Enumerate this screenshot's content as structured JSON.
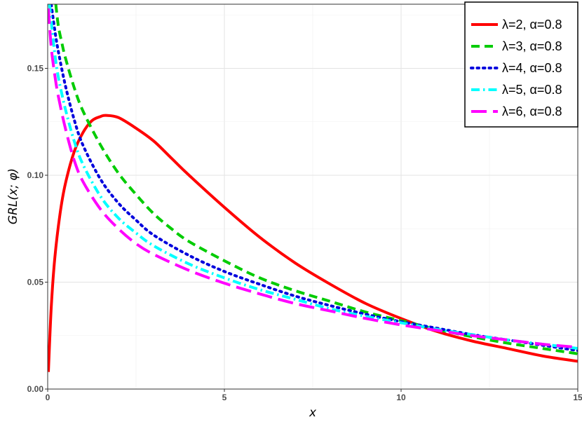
{
  "chart_data": {
    "type": "line",
    "title": "",
    "xlabel": "x",
    "ylabel": "GRL(x; φ)",
    "xlim": [
      0,
      15
    ],
    "ylim": [
      0,
      0.18
    ],
    "x_ticks": [
      0,
      5,
      10,
      15
    ],
    "x_tick_labels": [
      "0",
      "5",
      "10",
      "15"
    ],
    "y_ticks": [
      0.0,
      0.05,
      0.1,
      0.15
    ],
    "y_tick_labels": [
      "0.00",
      "0.05",
      "0.10",
      "0.15"
    ],
    "grid": true,
    "legend_position": "top-right",
    "series": [
      {
        "name": "λ=2, α=0.8",
        "color": "#ff0000",
        "dash": "solid",
        "x": [
          0.02,
          0.1,
          0.2,
          0.35,
          0.5,
          0.75,
          1.0,
          1.25,
          1.5,
          1.65,
          2.0,
          2.5,
          3.0,
          3.5,
          4.0,
          5.0,
          6.0,
          7.0,
          8.0,
          9.0,
          10.0,
          11.0,
          12.0,
          13.0,
          14.0,
          15.0
        ],
        "y": [
          0.008,
          0.038,
          0.061,
          0.082,
          0.096,
          0.111,
          0.12,
          0.1255,
          0.1275,
          0.128,
          0.127,
          0.122,
          0.116,
          0.108,
          0.1,
          0.085,
          0.071,
          0.059,
          0.049,
          0.04,
          0.033,
          0.027,
          0.0225,
          0.019,
          0.0155,
          0.013
        ]
      },
      {
        "name": "λ=3, α=0.8",
        "color": "#00cc00",
        "dash": "dashed",
        "x": [
          0.23,
          0.3,
          0.4,
          0.5,
          0.75,
          1.0,
          1.5,
          2.0,
          2.5,
          3.0,
          3.5,
          4.0,
          5.0,
          6.0,
          7.0,
          8.0,
          9.0,
          10.0,
          11.0,
          12.0,
          13.0,
          14.0,
          15.0
        ],
        "y": [
          0.18,
          0.17,
          0.162,
          0.155,
          0.141,
          0.13,
          0.114,
          0.101,
          0.091,
          0.082,
          0.075,
          0.069,
          0.06,
          0.052,
          0.046,
          0.041,
          0.036,
          0.032,
          0.028,
          0.0245,
          0.0215,
          0.019,
          0.0165
        ]
      },
      {
        "name": "λ=4, α=0.8",
        "color": "#0000dd",
        "dash": "dotted",
        "x": [
          0.1,
          0.2,
          0.3,
          0.5,
          0.75,
          1.0,
          1.5,
          2.0,
          2.5,
          3.0,
          4.0,
          5.0,
          6.0,
          7.0,
          8.0,
          9.0,
          10.0,
          11.0,
          12.0,
          13.0,
          14.0,
          15.0
        ],
        "y": [
          0.18,
          0.168,
          0.158,
          0.142,
          0.126,
          0.114,
          0.098,
          0.087,
          0.079,
          0.072,
          0.0625,
          0.055,
          0.049,
          0.0435,
          0.039,
          0.035,
          0.0315,
          0.0285,
          0.0255,
          0.023,
          0.0205,
          0.018
        ]
      },
      {
        "name": "λ=5, α=0.8",
        "color": "#00ffff",
        "dash": "dashdot",
        "x": [
          0.05,
          0.1,
          0.2,
          0.3,
          0.5,
          0.75,
          1.0,
          1.5,
          2.0,
          2.5,
          3.0,
          4.0,
          5.0,
          6.0,
          7.0,
          8.0,
          9.0,
          10.0,
          11.0,
          12.0,
          13.0,
          14.0,
          15.0
        ],
        "y": [
          0.18,
          0.172,
          0.157,
          0.146,
          0.131,
          0.116,
          0.105,
          0.09,
          0.08,
          0.073,
          0.067,
          0.0585,
          0.052,
          0.0465,
          0.042,
          0.0375,
          0.034,
          0.031,
          0.028,
          0.0255,
          0.023,
          0.021,
          0.019
        ]
      },
      {
        "name": "λ=6, α=0.8",
        "color": "#ff00ff",
        "dash": "longdash",
        "x": [
          0.02,
          0.1,
          0.2,
          0.3,
          0.5,
          0.75,
          1.0,
          1.5,
          2.0,
          2.5,
          3.0,
          4.0,
          5.0,
          6.0,
          7.0,
          8.0,
          9.0,
          10.0,
          11.0,
          12.0,
          13.0,
          14.0,
          15.0
        ],
        "y": [
          0.178,
          0.16,
          0.147,
          0.137,
          0.122,
          0.107,
          0.097,
          0.084,
          0.075,
          0.068,
          0.063,
          0.0555,
          0.0495,
          0.0445,
          0.04,
          0.0365,
          0.033,
          0.03,
          0.0275,
          0.025,
          0.023,
          0.021,
          0.0195
        ]
      }
    ]
  }
}
